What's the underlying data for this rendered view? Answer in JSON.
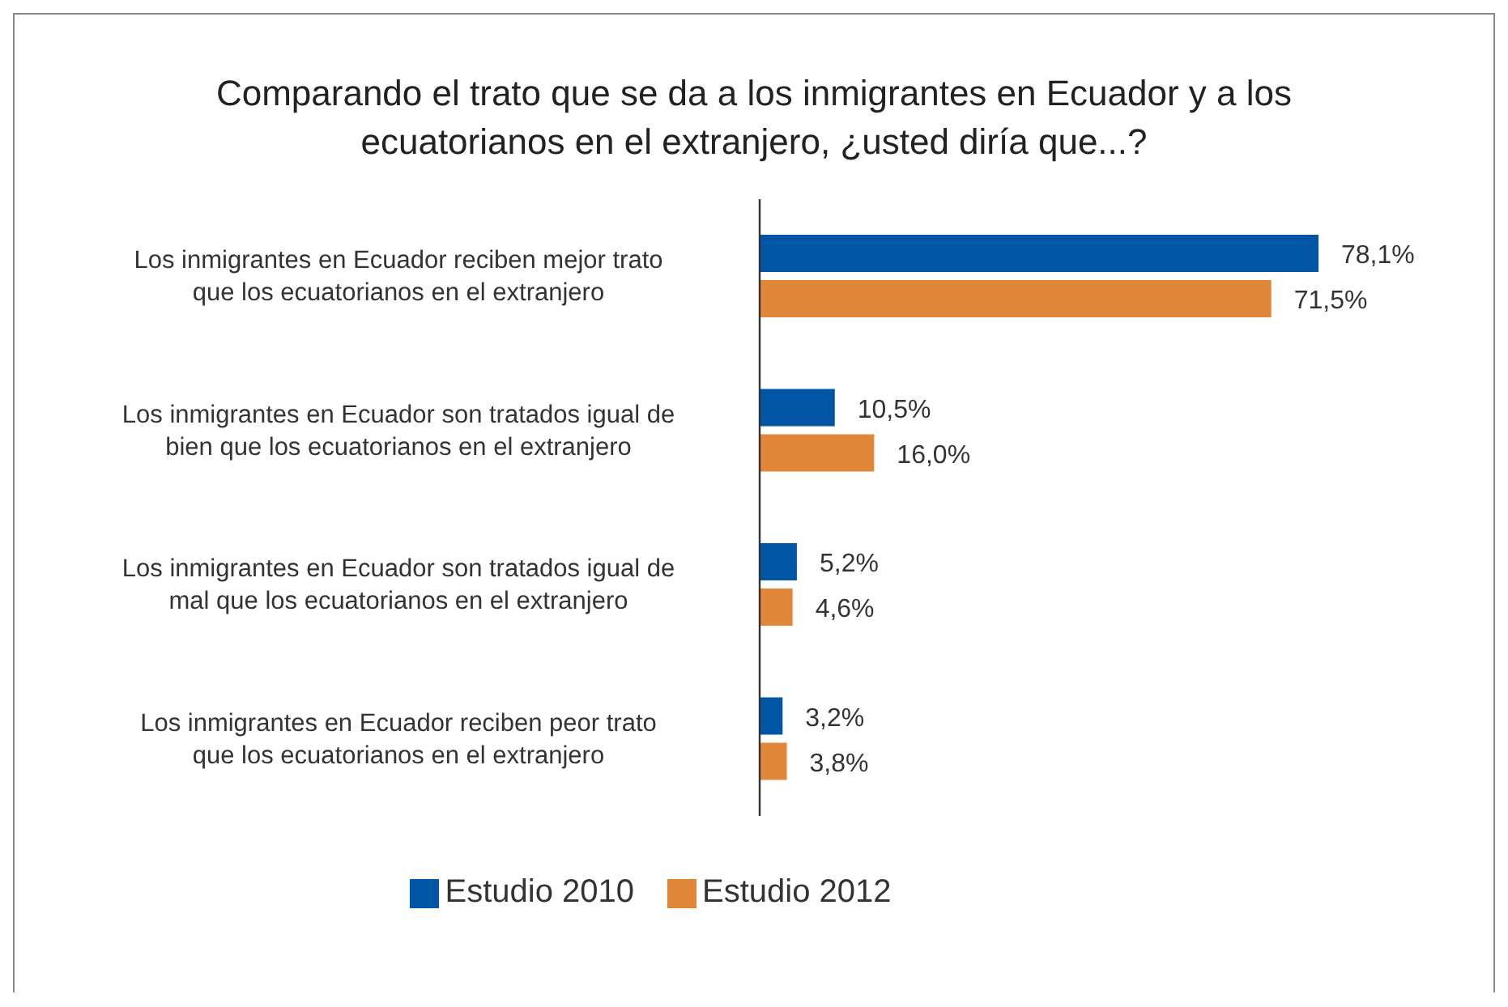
{
  "chart_data": {
    "type": "bar",
    "orientation": "horizontal",
    "title": "Comparando el trato que se da a los inmigrantes en Ecuador y a los ecuatorianos en el extranjero, ¿usted diría que...?",
    "categories": [
      "Los inmigrantes en Ecuador reciben mejor trato que los ecuatorianos en el extranjero",
      "Los inmigrantes en Ecuador son tratados igual de bien que los ecuatorianos en el extranjero",
      "Los inmigrantes en Ecuador son tratados igual de mal que los ecuatorianos en el extranjero",
      "Los inmigrantes en Ecuador reciben peor trato que los ecuatorianos en el extranjero"
    ],
    "series": [
      {
        "name": "Estudio 2010",
        "color": "#0055a5",
        "values": [
          78.1,
          10.5,
          5.2,
          3.2
        ],
        "value_labels": [
          "78,1%",
          "10,5%",
          "5,2%",
          "3,2%"
        ]
      },
      {
        "name": "Estudio 2012",
        "color": "#e0873a",
        "values": [
          71.5,
          16.0,
          4.6,
          3.8
        ],
        "value_labels": [
          "71,5%",
          "16,0%",
          "4,6%",
          "3,8%"
        ]
      }
    ],
    "legend": "bottom",
    "grid": false
  }
}
